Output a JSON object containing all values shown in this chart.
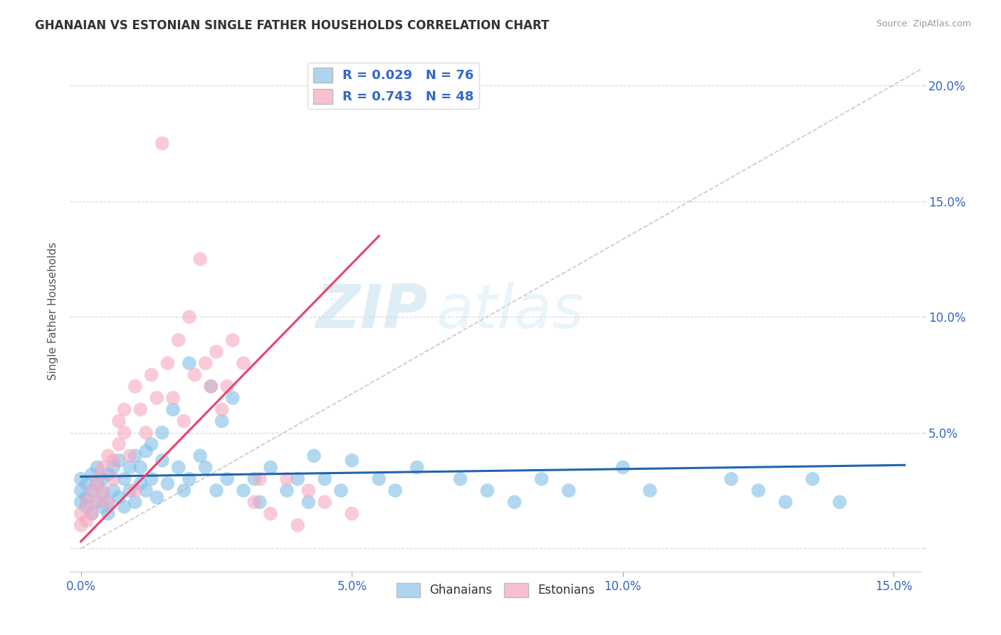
{
  "title": "GHANAIAN VS ESTONIAN SINGLE FATHER HOUSEHOLDS CORRELATION CHART",
  "source": "Source: ZipAtlas.com",
  "ylabel": "Single Father Households",
  "xlim": [
    -0.002,
    0.155
  ],
  "ylim": [
    -0.01,
    0.215
  ],
  "x_tick_vals": [
    0.0,
    0.05,
    0.1,
    0.15
  ],
  "x_tick_labels": [
    "0.0%",
    "5.0%",
    "10.0%",
    "15.0%"
  ],
  "y_tick_vals": [
    0.0,
    0.05,
    0.1,
    0.15,
    0.2
  ],
  "y_tick_labels_right": [
    "",
    "5.0%",
    "10.0%",
    "15.0%",
    "20.0%"
  ],
  "ghanaian_scatter_color": "#7fbfe8",
  "estonian_scatter_color": "#f7a8c0",
  "ghanaian_line_color": "#2166ac",
  "estonian_line_color": "#e8436e",
  "diag_line_color": "#c8c8c8",
  "legend_box_color_gh": "#aed4f0",
  "legend_box_color_est": "#f9c0d0",
  "legend_text_color": "#3366cc",
  "R_ghanaian": 0.029,
  "N_ghanaian": 76,
  "R_estonian": 0.743,
  "N_estonian": 48,
  "watermark_zip": "ZIP",
  "watermark_atlas": "atlas",
  "legend_label_ghanaian": "Ghanaians",
  "legend_label_estonian": "Estonians",
  "gh_trend_x0": 0.0,
  "gh_trend_x1": 0.152,
  "gh_trend_y0": 0.031,
  "gh_trend_y1": 0.036,
  "est_trend_x0": 0.0,
  "est_trend_x1": 0.055,
  "est_trend_y0": 0.003,
  "est_trend_y1": 0.135,
  "ghanaian_x": [
    0.0,
    0.0,
    0.0,
    0.001,
    0.001,
    0.001,
    0.002,
    0.002,
    0.002,
    0.003,
    0.003,
    0.003,
    0.004,
    0.004,
    0.004,
    0.005,
    0.005,
    0.005,
    0.006,
    0.006,
    0.007,
    0.007,
    0.008,
    0.008,
    0.009,
    0.009,
    0.01,
    0.01,
    0.011,
    0.011,
    0.012,
    0.012,
    0.013,
    0.013,
    0.014,
    0.015,
    0.015,
    0.016,
    0.017,
    0.018,
    0.019,
    0.02,
    0.02,
    0.022,
    0.023,
    0.024,
    0.025,
    0.026,
    0.027,
    0.028,
    0.03,
    0.032,
    0.033,
    0.035,
    0.038,
    0.04,
    0.042,
    0.043,
    0.045,
    0.048,
    0.05,
    0.055,
    0.058,
    0.062,
    0.07,
    0.075,
    0.08,
    0.085,
    0.09,
    0.1,
    0.105,
    0.12,
    0.125,
    0.13,
    0.135,
    0.14
  ],
  "ghanaian_y": [
    0.02,
    0.025,
    0.03,
    0.018,
    0.022,
    0.028,
    0.015,
    0.025,
    0.032,
    0.02,
    0.028,
    0.035,
    0.018,
    0.024,
    0.03,
    0.015,
    0.02,
    0.032,
    0.025,
    0.035,
    0.022,
    0.038,
    0.018,
    0.03,
    0.025,
    0.035,
    0.02,
    0.04,
    0.028,
    0.035,
    0.025,
    0.042,
    0.03,
    0.045,
    0.022,
    0.038,
    0.05,
    0.028,
    0.06,
    0.035,
    0.025,
    0.08,
    0.03,
    0.04,
    0.035,
    0.07,
    0.025,
    0.055,
    0.03,
    0.065,
    0.025,
    0.03,
    0.02,
    0.035,
    0.025,
    0.03,
    0.02,
    0.04,
    0.03,
    0.025,
    0.038,
    0.03,
    0.025,
    0.035,
    0.03,
    0.025,
    0.02,
    0.03,
    0.025,
    0.035,
    0.025,
    0.03,
    0.025,
    0.02,
    0.03,
    0.02
  ],
  "estonian_x": [
    0.0,
    0.0,
    0.001,
    0.001,
    0.002,
    0.002,
    0.003,
    0.003,
    0.004,
    0.004,
    0.005,
    0.005,
    0.006,
    0.006,
    0.007,
    0.007,
    0.008,
    0.008,
    0.009,
    0.01,
    0.01,
    0.011,
    0.012,
    0.013,
    0.014,
    0.015,
    0.016,
    0.017,
    0.018,
    0.019,
    0.02,
    0.021,
    0.022,
    0.023,
    0.024,
    0.025,
    0.026,
    0.027,
    0.028,
    0.03,
    0.032,
    0.033,
    0.035,
    0.038,
    0.04,
    0.042,
    0.045,
    0.05
  ],
  "estonian_y": [
    0.01,
    0.015,
    0.012,
    0.02,
    0.015,
    0.025,
    0.02,
    0.03,
    0.025,
    0.035,
    0.02,
    0.04,
    0.03,
    0.038,
    0.045,
    0.055,
    0.05,
    0.06,
    0.04,
    0.025,
    0.07,
    0.06,
    0.05,
    0.075,
    0.065,
    0.175,
    0.08,
    0.065,
    0.09,
    0.055,
    0.1,
    0.075,
    0.125,
    0.08,
    0.07,
    0.085,
    0.06,
    0.07,
    0.09,
    0.08,
    0.02,
    0.03,
    0.015,
    0.03,
    0.01,
    0.025,
    0.02,
    0.015
  ]
}
